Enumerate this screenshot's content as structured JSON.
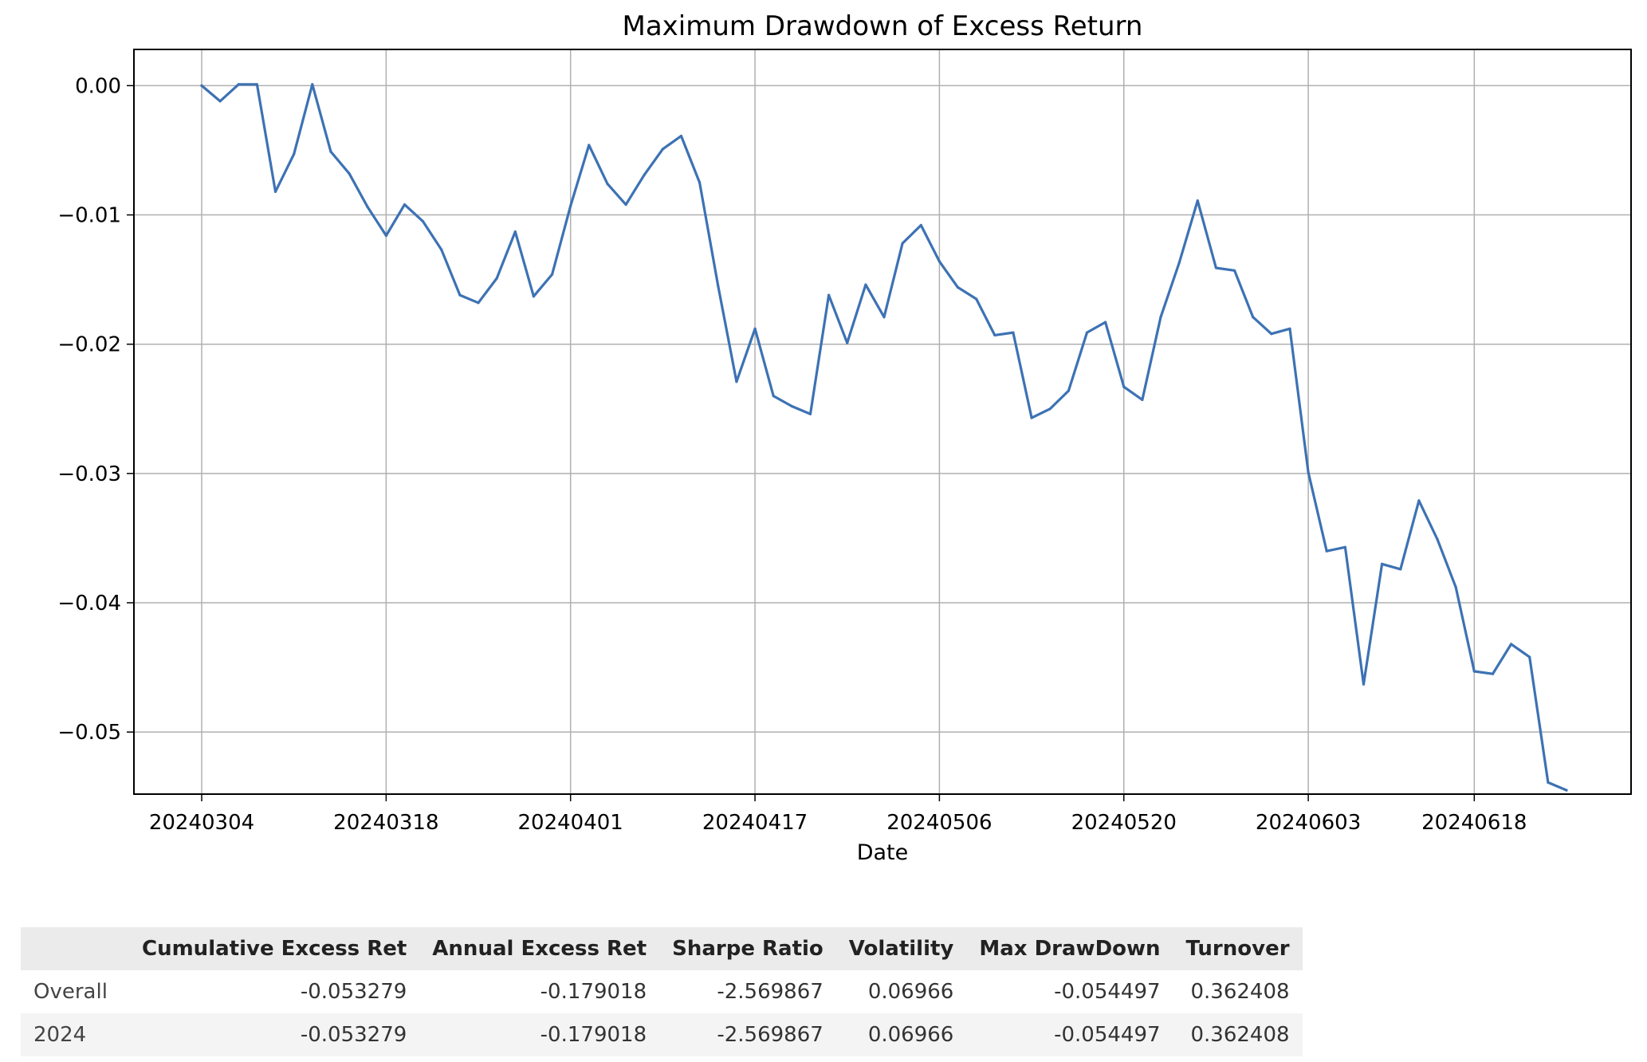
{
  "chart_data": {
    "type": "line",
    "title": "Maximum Drawdown of Excess Return",
    "xlabel": "Date",
    "ylabel": "",
    "grid": true,
    "color": "#3d72b4",
    "xticks": [
      "20240304",
      "20240318",
      "20240401",
      "20240417",
      "20240506",
      "20240520",
      "20240603",
      "20240618"
    ],
    "yticks": [
      "0.00",
      "−0.01",
      "−0.02",
      "−0.03",
      "−0.04",
      "−0.05"
    ],
    "ylim": [
      -0.0548,
      0.0028
    ],
    "series": [
      {
        "values": [
          0.0,
          -0.0012,
          0.0001,
          0.0001,
          -0.0082,
          -0.0053,
          0.0001,
          -0.0051,
          -0.0068,
          -0.0094,
          -0.0116,
          -0.0092,
          -0.0105,
          -0.0127,
          -0.0162,
          -0.0168,
          -0.0149,
          -0.0113,
          -0.0163,
          -0.0146,
          -0.0093,
          -0.0046,
          -0.0076,
          -0.0092,
          -0.0069,
          -0.0049,
          -0.0039,
          -0.0075,
          -0.0155,
          -0.0229,
          -0.0188,
          -0.024,
          -0.0248,
          -0.0254,
          -0.0162,
          -0.0199,
          -0.0154,
          -0.0179,
          -0.0122,
          -0.0108,
          -0.0136,
          -0.0156,
          -0.0165,
          -0.0193,
          -0.0191,
          -0.0257,
          -0.025,
          -0.0236,
          -0.0191,
          -0.0183,
          -0.0233,
          -0.0243,
          -0.0179,
          -0.0137,
          -0.0089,
          -0.0141,
          -0.0143,
          -0.0179,
          -0.0192,
          -0.0188,
          -0.0299,
          -0.036,
          -0.0357,
          -0.0463,
          -0.037,
          -0.0374,
          -0.0321,
          -0.0351,
          -0.0388,
          -0.0453,
          -0.0455,
          -0.0432,
          -0.0442,
          -0.0539,
          -0.0545
        ]
      }
    ]
  },
  "table": {
    "headers": [
      "",
      "Cumulative Excess Ret",
      "Annual Excess Ret",
      "Sharpe Ratio",
      "Volatility",
      "Max DrawDown",
      "Turnover"
    ],
    "rows": [
      [
        "Overall",
        "-0.053279",
        "-0.179018",
        "-2.569867",
        "0.06966",
        "-0.054497",
        "0.362408"
      ],
      [
        "2024",
        "-0.053279",
        "-0.179018",
        "-2.569867",
        "0.06966",
        "-0.054497",
        "0.362408"
      ]
    ]
  }
}
